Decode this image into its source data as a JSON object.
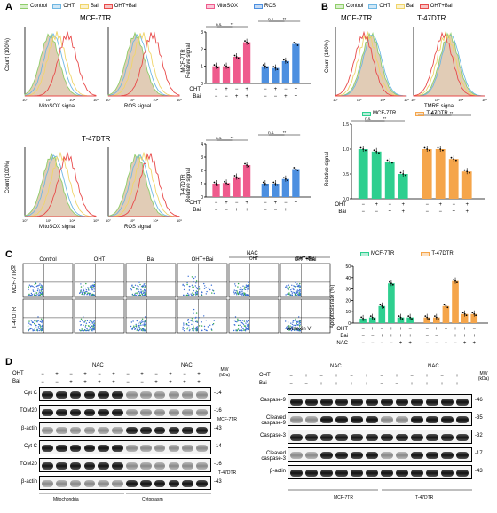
{
  "legend": {
    "items": [
      {
        "label": "Control",
        "color": "#8fce6a"
      },
      {
        "label": "OHT",
        "color": "#6fb7e3"
      },
      {
        "label": "Bai",
        "color": "#f0d56a"
      },
      {
        "label": "OHT+Bai",
        "color": "#e84a4a"
      }
    ]
  },
  "panelA": {
    "letter": "A",
    "top_title": "MCF-7TR",
    "bottom_title": "T-47DTR",
    "ylabel": "Count (100%)",
    "hist_xlabels": [
      "MitoSOX signal",
      "ROS signal"
    ],
    "ticks": [
      "10°",
      "10²",
      "10⁴",
      "10⁶"
    ],
    "bar_legend": [
      {
        "label": "MitoSOX",
        "color": "#ef5b8d"
      },
      {
        "label": "ROS",
        "color": "#4c8fe0"
      }
    ],
    "bar_ylabel_top": "MCF-7TR Relative signal",
    "bar_ylabel_top_parts": [
      "MCF-7TR",
      "Relative signal"
    ],
    "bar_ylabel_bottom_parts": [
      "T-47DTR",
      "Relative signal"
    ],
    "row_labels": [
      "OHT",
      "Bai"
    ],
    "row_signs": [
      [
        "−",
        "+",
        "−",
        "+",
        "−",
        "+",
        "−",
        "+"
      ],
      [
        "−",
        "−",
        "+",
        "+",
        "−",
        "−",
        "+",
        "+"
      ]
    ],
    "sig": [
      "n.s.",
      "**"
    ]
  },
  "chart_data": [
    {
      "type": "bar",
      "title": "MCF-7TR",
      "ylabel": "Relative signal",
      "ylim": [
        0,
        3
      ],
      "yticks": [
        "0",
        "1",
        "2",
        "3"
      ],
      "series": [
        {
          "name": "MitoSOX",
          "values": [
            1.0,
            1.0,
            1.55,
            2.4
          ]
        },
        {
          "name": "ROS",
          "values": [
            1.0,
            0.9,
            1.3,
            2.3
          ]
        }
      ]
    },
    {
      "type": "bar",
      "title": "T-47DTR",
      "ylabel": "Relative signal",
      "ylim": [
        0,
        4
      ],
      "yticks": [
        "0",
        "1",
        "2",
        "3",
        "4"
      ],
      "series": [
        {
          "name": "MitoSOX",
          "values": [
            1.0,
            1.05,
            1.5,
            2.4
          ]
        },
        {
          "name": "ROS",
          "values": [
            1.0,
            1.0,
            1.35,
            2.1
          ]
        }
      ]
    },
    {
      "type": "bar",
      "title": "TMRE",
      "ylabel": "Relative signal",
      "ylim": [
        0,
        1.5
      ],
      "yticks": [
        "0.0",
        "0.5",
        "1.0",
        "1.5"
      ],
      "series": [
        {
          "name": "MCF-7TR",
          "values": [
            1.0,
            0.95,
            0.75,
            0.5
          ]
        },
        {
          "name": "T-47DTR",
          "values": [
            1.0,
            1.0,
            0.8,
            0.55
          ]
        }
      ]
    },
    {
      "type": "bar",
      "title": "Apoptosis",
      "ylabel": "Apoptosis rate (%)",
      "ylim": [
        0,
        50
      ],
      "yticks": [
        "0",
        "10",
        "20",
        "30",
        "40",
        "50"
      ],
      "series": [
        {
          "name": "MCF-7TR",
          "values": [
            4,
            5,
            15,
            35,
            5,
            5
          ]
        },
        {
          "name": "T-47DTR",
          "values": [
            5,
            5,
            15,
            37,
            8,
            8
          ]
        }
      ]
    }
  ],
  "panelB": {
    "letter": "B",
    "titles": [
      "MCF-7TR",
      "T-47DTR"
    ],
    "ylabel": "Count (100%)",
    "xlabel": "TMRE signal",
    "bar_legend": [
      {
        "label": "MCF-7TR",
        "color": "#2ecf8f"
      },
      {
        "label": "T-47DTR",
        "color": "#f5a54a"
      }
    ],
    "row_labels": [
      "OHT",
      "Bai"
    ]
  },
  "panelC": {
    "letter": "C",
    "col_titles": [
      "Control",
      "OHT",
      "Bai",
      "OHT+Bai",
      "",
      "OHT+Bai"
    ],
    "nac_label": "NAC",
    "nac_sub": [
      "OHT",
      "OHT+Bai"
    ],
    "row_labels": [
      "MCF-7TR",
      "T-47DTR"
    ],
    "ylabel": "PI",
    "xlabel": "Annexin V",
    "bar_ylabel": "Apoptosis rate (%)",
    "row_labels_bar": [
      "OHT",
      "Bai",
      "NAC"
    ]
  },
  "panelD": {
    "letter": "D",
    "left_rows": [
      "Cyt C",
      "TOM20",
      "β-actin",
      "Cyt C",
      "TOM20",
      "β-actin"
    ],
    "left_mw": [
      "14",
      "16",
      "43",
      "14",
      "16",
      "43"
    ],
    "left_side": [
      "MCF-7TR",
      "T-47DTR"
    ],
    "left_bottom": [
      "Mitochondria",
      "Cytoplasm"
    ],
    "mw_label": "MW (kDa)",
    "oht": "OHT",
    "bai": "Bai",
    "nac": "NAC",
    "right_rows": [
      "Caspase-9",
      "Cleaved caspase-9",
      "Caspase-3",
      "Cleaved caspase-3",
      "β-actin"
    ],
    "right_mw": [
      "46",
      "35",
      "32",
      "17",
      "43"
    ],
    "right_bottom": [
      "MCF-7TR",
      "T-47DTR"
    ]
  }
}
